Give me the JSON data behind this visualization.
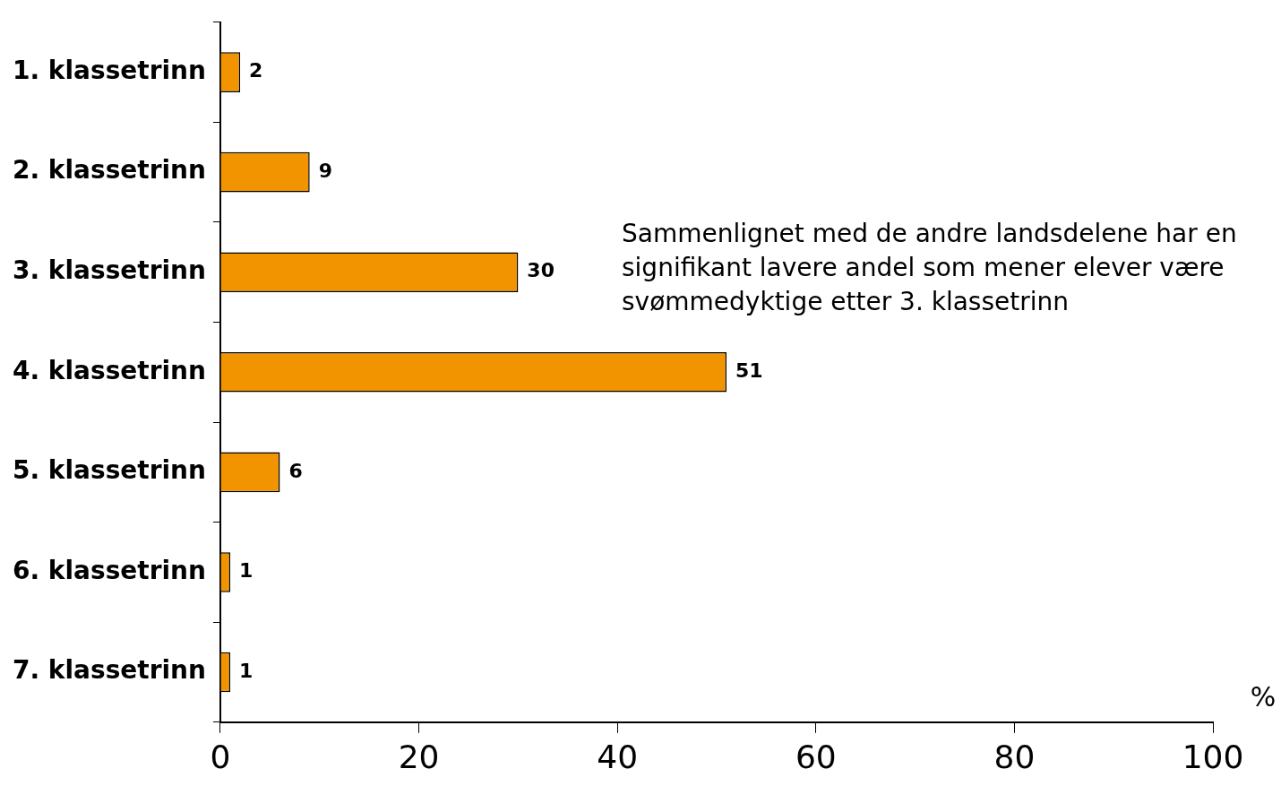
{
  "chart_data": {
    "type": "bar",
    "orientation": "horizontal",
    "categories": [
      "1. klassetrinn",
      "2. klassetrinn",
      "3. klassetrinn",
      "4. klassetrinn",
      "5. klassetrinn",
      "6. klassetrinn",
      "7. klassetrinn"
    ],
    "values": [
      2,
      9,
      30,
      51,
      6,
      1,
      1
    ],
    "color": "#f29400",
    "xlim": [
      0,
      100
    ],
    "xticks": [
      0,
      20,
      40,
      60,
      80,
      100
    ],
    "xlabel": "%",
    "data_labels": true,
    "grid": false,
    "legend": false,
    "annotations": [
      "Sammenlignet med de andre landsdelene har en signifikant lavere andel som mener elever være svømmedyktige etter 3. klassetrinn"
    ]
  }
}
